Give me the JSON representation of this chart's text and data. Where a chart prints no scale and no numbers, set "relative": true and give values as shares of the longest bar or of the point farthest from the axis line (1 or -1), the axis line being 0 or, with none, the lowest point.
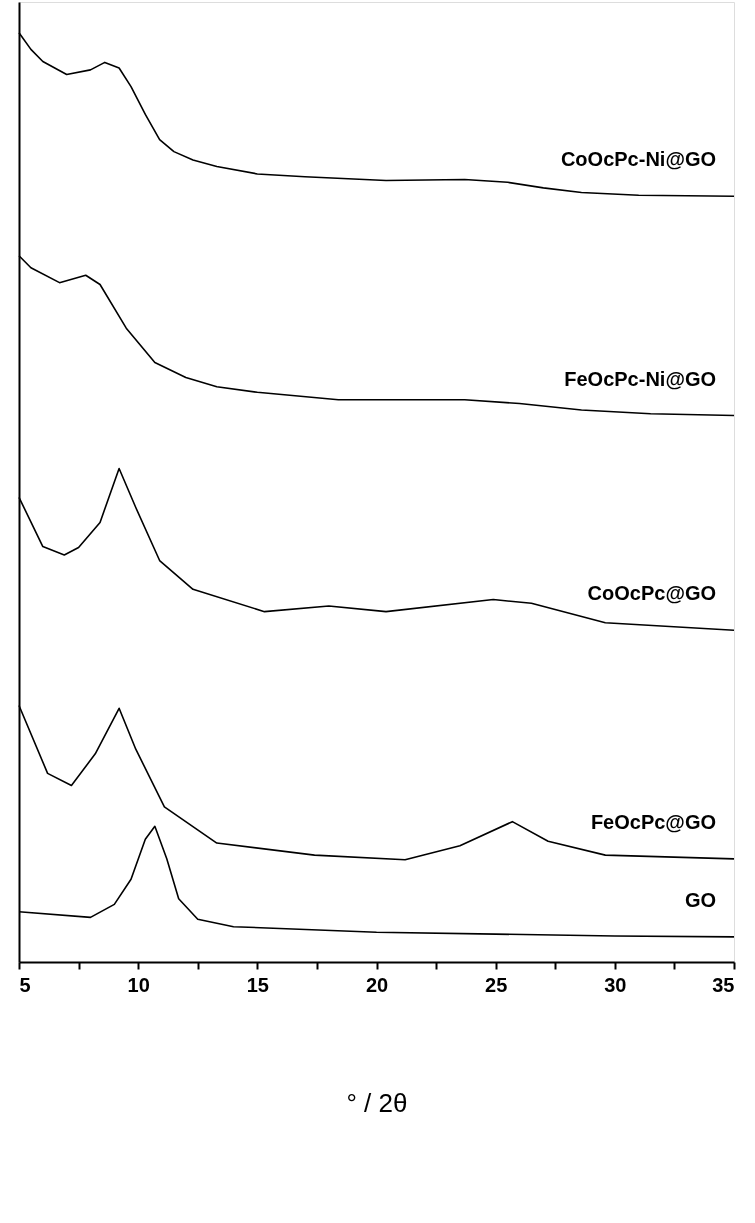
{
  "chart_data": {
    "type": "line",
    "relative": true,
    "xlabel": "° / 2θ",
    "xlim": [
      5,
      35
    ],
    "xticks": [
      5,
      {
        "value": 7.5,
        "label": null
      },
      10,
      {
        "value": 12.5,
        "label": null
      },
      15,
      {
        "value": 17.5,
        "label": null
      },
      20,
      {
        "value": 22.5,
        "label": null
      },
      25,
      {
        "value": 27.5,
        "label": null
      },
      30,
      {
        "value": 32.5,
        "label": null
      },
      35
    ],
    "tick_labels": "x",
    "grid": false,
    "legend": false,
    "marker": "none",
    "line_style": "solid",
    "series": [
      {
        "name": "CoOcPc-Ni@GO",
        "color": "#000000",
        "x": [
          5,
          5.5,
          6,
          7,
          8,
          8.6,
          9.2,
          9.7,
          10.3,
          10.9,
          11.5,
          12.3,
          13.3,
          15,
          17,
          20.4,
          23.7,
          25.5,
          27,
          28.6,
          31,
          35
        ],
        "values": [
          1.0,
          0.982,
          0.969,
          0.955,
          0.96,
          0.968,
          0.962,
          0.942,
          0.912,
          0.885,
          0.872,
          0.863,
          0.856,
          0.848,
          0.845,
          0.841,
          0.842,
          0.839,
          0.833,
          0.828,
          0.825,
          0.824
        ]
      },
      {
        "name": "FeOcPc-Ni@GO",
        "color": "#000000",
        "x": [
          5,
          5.5,
          6.7,
          7.8,
          8.4,
          9.5,
          10.7,
          12,
          13.3,
          15,
          18.4,
          23.7,
          26,
          28.6,
          31.5,
          35
        ],
        "values": [
          0.76,
          0.747,
          0.731,
          0.739,
          0.729,
          0.682,
          0.645,
          0.629,
          0.619,
          0.613,
          0.605,
          0.605,
          0.601,
          0.594,
          0.59,
          0.588
        ]
      },
      {
        "name": "CoOcPc@GO",
        "color": "#000000",
        "x": [
          5,
          6,
          6.9,
          7.5,
          8.4,
          9.2,
          9.9,
          10.9,
          12.3,
          15.3,
          18,
          20.4,
          24.9,
          26.5,
          29.6,
          35
        ],
        "values": [
          0.5,
          0.447,
          0.438,
          0.446,
          0.473,
          0.531,
          0.489,
          0.432,
          0.401,
          0.377,
          0.383,
          0.377,
          0.39,
          0.386,
          0.365,
          0.357
        ]
      },
      {
        "name": "FeOcPc@GO",
        "color": "#000000",
        "x": [
          5,
          6.2,
          7.2,
          8.2,
          9.2,
          9.9,
          11.1,
          13.3,
          17.4,
          21.2,
          23.5,
          25.7,
          27.2,
          29.6,
          35
        ],
        "values": [
          0.276,
          0.203,
          0.19,
          0.224,
          0.273,
          0.229,
          0.167,
          0.128,
          0.115,
          0.11,
          0.125,
          0.151,
          0.13,
          0.115,
          0.111
        ]
      },
      {
        "name": "GO",
        "color": "#000000",
        "x": [
          5,
          8,
          9,
          9.7,
          10.3,
          10.7,
          11.2,
          11.7,
          12.5,
          14,
          20,
          25,
          30,
          35
        ],
        "values": [
          0.054,
          0.048,
          0.062,
          0.089,
          0.132,
          0.146,
          0.111,
          0.068,
          0.046,
          0.038,
          0.032,
          0.03,
          0.028,
          0.027
        ]
      }
    ]
  }
}
